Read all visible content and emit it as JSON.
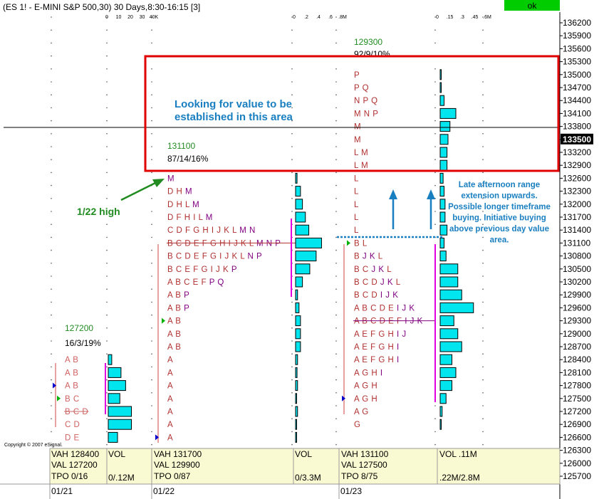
{
  "header": {
    "title": "(ES 1! - E-MINI S&P 500,30) 30 Days,8:30-16:15 [3]",
    "ok_label": "ok",
    "ok_color": "#00cc00"
  },
  "copyright": "Copyright © 2007 eSignal.",
  "annotations": {
    "value_note": [
      "Looking for value to be",
      "established in this area"
    ],
    "high_label": "1/22 high",
    "extension_note": [
      "Late afternoon range",
      "extension upwards.",
      "Possible longer timeframe",
      "buying. Initiative buying",
      "above previous day value",
      "area."
    ]
  },
  "chart_data": {
    "type": "table",
    "price_axis": {
      "ticks": [
        "136200",
        "135900",
        "135600",
        "135300",
        "135000",
        "134700",
        "134400",
        "134100",
        "133800",
        "133500",
        "133200",
        "132900",
        "132600",
        "132300",
        "132000",
        "131700",
        "131400",
        "131100",
        "130800",
        "130500",
        "130200",
        "129900",
        "129600",
        "129300",
        "129000",
        "128700",
        "128400",
        "128100",
        "127800",
        "127500",
        "127200",
        "126900",
        "126600",
        "126300",
        "126000",
        "125700"
      ],
      "current_price": "133500",
      "ylim": [
        125700,
        136200
      ],
      "step": 300
    },
    "volume_axes": [
      {
        "ticks": [
          "0",
          "10",
          "20",
          "30",
          "40K"
        ]
      },
      {
        "ticks": [
          "0",
          ".2",
          ".4",
          ".6",
          ".8M"
        ]
      },
      {
        "ticks": [
          "0",
          ".15",
          ".3",
          ".45",
          ".6M"
        ]
      }
    ],
    "sessions": [
      {
        "date": "01/21",
        "summary": {
          "close_price": "127200",
          "stats": "16/3/19%"
        },
        "vah": "VAH 128400",
        "val": "VAL 127200",
        "tpo": "TPO 0/16",
        "vol_label": "VOL",
        "vol_value": "0/.12M",
        "profile": [
          {
            "price": 128400,
            "letters": "A B"
          },
          {
            "price": 128100,
            "letters": "A B"
          },
          {
            "price": 127800,
            "letters": "A B"
          },
          {
            "price": 127500,
            "letters": "B C"
          },
          {
            "price": 127200,
            "letters": "B C D"
          },
          {
            "price": 126900,
            "letters": "C D"
          },
          {
            "price": 126600,
            "letters": "D E"
          }
        ],
        "volume": [
          3,
          11,
          15,
          10,
          20,
          20,
          8
        ]
      },
      {
        "date": "01/22",
        "summary": {
          "close_price": "131100",
          "stats": "87/14/16%"
        },
        "vah": "VAH 131700",
        "val": "VAL 129900",
        "tpo": "TPO 0/87",
        "vol_label": "VOL",
        "vol_value": "0/3.3M",
        "profile": [
          {
            "price": 132600,
            "letters": "M"
          },
          {
            "price": 132300,
            "letters": "D H M"
          },
          {
            "price": 132000,
            "letters": "D H L M"
          },
          {
            "price": 131700,
            "letters": "D F H I L M"
          },
          {
            "price": 131400,
            "letters": "C D F G H I J K L M N"
          },
          {
            "price": 131100,
            "letters": "B C D E F G H I J K L M N P"
          },
          {
            "price": 130800,
            "letters": "B C D E F G I J K L N P"
          },
          {
            "price": 130500,
            "letters": "B C E F G I J K P"
          },
          {
            "price": 130200,
            "letters": "A B C E F P Q"
          },
          {
            "price": 129900,
            "letters": "A B P"
          },
          {
            "price": 129600,
            "letters": "A B P"
          },
          {
            "price": 129300,
            "letters": "A B"
          },
          {
            "price": 129000,
            "letters": "A B"
          },
          {
            "price": 128700,
            "letters": "A B"
          },
          {
            "price": 128400,
            "letters": "A"
          },
          {
            "price": 128100,
            "letters": "A"
          },
          {
            "price": 127800,
            "letters": "A"
          },
          {
            "price": 127500,
            "letters": "A"
          },
          {
            "price": 127200,
            "letters": "A"
          },
          {
            "price": 126900,
            "letters": "A"
          },
          {
            "price": 126600,
            "letters": "A"
          }
        ],
        "volume": [
          0.03,
          0.1,
          0.14,
          0.2,
          0.27,
          0.53,
          0.42,
          0.29,
          0.14,
          0.04,
          0.07,
          0.1,
          0.1,
          0.1,
          0.04,
          0.03,
          0.04,
          0.02,
          0.04,
          0.02,
          0.02
        ]
      },
      {
        "date": "01/23",
        "summary": {
          "close_price": "129300",
          "stats": "92/9/10%"
        },
        "vah": "VAH 131100",
        "val": "VAL 127500",
        "tpo": "TPO 8/75",
        "vol_label": "VOL .11M",
        "vol_value": ".22M/2.8M",
        "profile": [
          {
            "price": 135000,
            "letters": "P"
          },
          {
            "price": 134700,
            "letters": "P Q"
          },
          {
            "price": 134400,
            "letters": "N P Q"
          },
          {
            "price": 134100,
            "letters": "M N P"
          },
          {
            "price": 133800,
            "letters": "M"
          },
          {
            "price": 133500,
            "letters": "M"
          },
          {
            "price": 133200,
            "letters": "L M"
          },
          {
            "price": 132900,
            "letters": "L M"
          },
          {
            "price": 132600,
            "letters": "L"
          },
          {
            "price": 132300,
            "letters": "L"
          },
          {
            "price": 132000,
            "letters": "L"
          },
          {
            "price": 131700,
            "letters": "L"
          },
          {
            "price": 131400,
            "letters": "L"
          },
          {
            "price": 131100,
            "letters": "B L"
          },
          {
            "price": 130800,
            "letters": "B J K L"
          },
          {
            "price": 130500,
            "letters": "B C J K L"
          },
          {
            "price": 130200,
            "letters": "B C D J K L"
          },
          {
            "price": 129900,
            "letters": "B C D I J K"
          },
          {
            "price": 129600,
            "letters": "A B C D E I J K"
          },
          {
            "price": 129300,
            "letters": "A B C D E F I J K"
          },
          {
            "price": 129000,
            "letters": "A E F G H I J"
          },
          {
            "price": 128700,
            "letters": "A E F G H I"
          },
          {
            "price": 128400,
            "letters": "A E F G H I"
          },
          {
            "price": 128100,
            "letters": "A G H I"
          },
          {
            "price": 127800,
            "letters": "A G H"
          },
          {
            "price": 127500,
            "letters": "A G H"
          },
          {
            "price": 127200,
            "letters": "A G"
          },
          {
            "price": 126900,
            "letters": "G"
          }
        ],
        "volume": [
          0.003,
          0.005,
          0.02,
          0.08,
          0.05,
          0.04,
          0.035,
          0.035,
          0.015,
          0.02,
          0.025,
          0.025,
          0.035,
          0.02,
          0.03,
          0.09,
          0.09,
          0.11,
          0.17,
          0.07,
          0.09,
          0.11,
          0.06,
          0.08,
          0.06,
          0.03,
          0.01,
          0.005
        ]
      }
    ]
  }
}
